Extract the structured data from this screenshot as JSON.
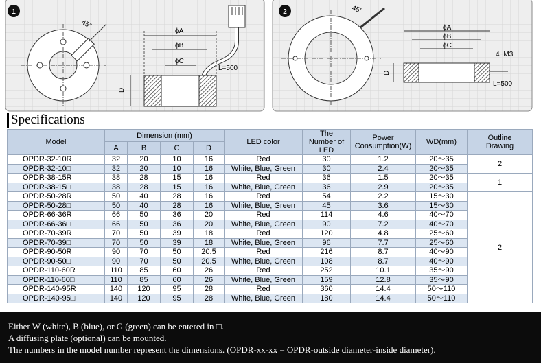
{
  "drawings": [
    {
      "number": "1",
      "angle": "45°",
      "phi_a": "ϕA",
      "phi_b": "ϕB",
      "phi_c": "ϕC",
      "d": "D",
      "cable": "L=500"
    },
    {
      "number": "2",
      "angle": "45°",
      "phi_a": "ϕA",
      "phi_b": "ϕB",
      "phi_c": "ϕC",
      "d": "D",
      "cable": "L=500",
      "screw": "4−M3"
    }
  ],
  "section_title": "Specifications",
  "table": {
    "header": {
      "model": "Model",
      "dimension": "Dimension (mm)",
      "dims": [
        "A",
        "B",
        "C",
        "D"
      ],
      "led_color": "LED  color",
      "num_led": "The Number of LED",
      "power": "Power Consumption(W)",
      "wd": "WD(mm)",
      "outline": "Outline Drawing"
    },
    "rows": [
      [
        "OPDR-32-10R",
        "32",
        "20",
        "10",
        "16",
        "Red",
        "30",
        "1.2",
        "20～35"
      ],
      [
        "OPDR-32-10□",
        "32",
        "20",
        "10",
        "16",
        "White, Blue, Green",
        "30",
        "2.4",
        "20～35"
      ],
      [
        "OPDR-38-15R",
        "38",
        "28",
        "15",
        "16",
        "Red",
        "36",
        "1.5",
        "20～35"
      ],
      [
        "OPDR-38-15□",
        "38",
        "28",
        "15",
        "16",
        "White, Blue, Green",
        "36",
        "2.9",
        "20～35"
      ],
      [
        "OPDR-50-28R",
        "50",
        "40",
        "28",
        "16",
        "Red",
        "54",
        "2.2",
        "15～30"
      ],
      [
        "OPDR-50-28□",
        "50",
        "40",
        "28",
        "16",
        "White, Blue, Green",
        "45",
        "3.6",
        "15～30"
      ],
      [
        "OPDR-66-36R",
        "66",
        "50",
        "36",
        "20",
        "Red",
        "114",
        "4.6",
        "40～70"
      ],
      [
        "OPDR-66-36□",
        "66",
        "50",
        "36",
        "20",
        "White, Blue, Green",
        "90",
        "7.2",
        "40～70"
      ],
      [
        "OPDR-70-39R",
        "70",
        "50",
        "39",
        "18",
        "Red",
        "120",
        "4.8",
        "25～60"
      ],
      [
        "OPDR-70-39□",
        "70",
        "50",
        "39",
        "18",
        "White, Blue, Green",
        "96",
        "7.7",
        "25～60"
      ],
      [
        "OPDR-90-50R",
        "90",
        "70",
        "50",
        "20.5",
        "Red",
        "216",
        "8.7",
        "40～90"
      ],
      [
        "OPDR-90-50□",
        "90",
        "70",
        "50",
        "20.5",
        "White, Blue, Green",
        "108",
        "8.7",
        "40～90"
      ],
      [
        "OPDR-110-60R",
        "110",
        "85",
        "60",
        "26",
        "Red",
        "252",
        "10.1",
        "35～90"
      ],
      [
        "OPDR-110-60□",
        "110",
        "85",
        "60",
        "26",
        "White, Blue, Green",
        "159",
        "12.8",
        "35～90"
      ],
      [
        "OPDR-140-95R",
        "140",
        "120",
        "95",
        "28",
        "Red",
        "360",
        "14.4",
        "50～110"
      ],
      [
        "OPDR-140-95□",
        "140",
        "120",
        "95",
        "28",
        "White, Blue, Green",
        "180",
        "14.4",
        "50～110"
      ]
    ],
    "outline": [
      "2",
      null,
      "1",
      null,
      "2",
      null,
      null,
      null,
      null,
      null,
      null,
      null,
      null,
      null,
      null,
      null
    ]
  },
  "notes": [
    "Either W (white), B (blue), or G (green) can be entered in □.",
    "A diffusing plate (optional) can be mounted.",
    "The numbers in the model number represent the dimensions. (OPDR-xx-xx = OPDR-outside diameter-inside diameter)."
  ]
}
